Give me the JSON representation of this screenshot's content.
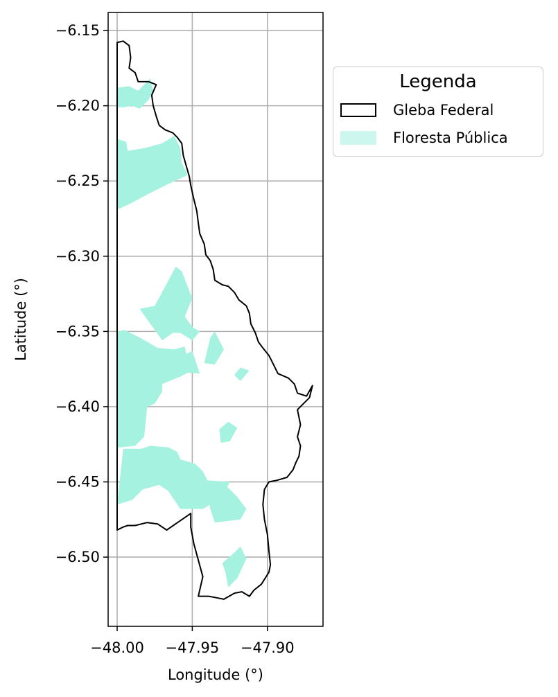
{
  "chart_data": {
    "type": "map",
    "xlabel": "Longitude (°)",
    "ylabel": "Latitude (°)",
    "xlim": [
      -48.006,
      -47.863
    ],
    "ylim": [
      -6.546,
      -6.138
    ],
    "xticks": [
      -48.0,
      -47.95,
      -47.9
    ],
    "xtick_labels": [
      "−48.00",
      "−47.95",
      "−47.90"
    ],
    "yticks": [
      -6.15,
      -6.2,
      -6.25,
      -6.3,
      -6.35,
      -6.4,
      -6.45,
      -6.5
    ],
    "ytick_labels": [
      "−6.15",
      "−6.20",
      "−6.25",
      "−6.30",
      "−6.35",
      "−6.40",
      "−6.45",
      "−6.50"
    ],
    "grid": true,
    "legend": {
      "title": "Legenda",
      "placement": "outside upper right",
      "entries": [
        {
          "label": "Gleba Federal",
          "style": "outline",
          "color": "#000000"
        },
        {
          "label": "Floresta Pública",
          "style": "fill",
          "color": "#a6f2e0"
        }
      ]
    },
    "series": [
      {
        "name": "Gleba Federal",
        "geometry": "polygon-outline",
        "coordinates": [
          [
            -48.0,
            -6.158
          ],
          [
            -47.996,
            -6.157
          ],
          [
            -47.992,
            -6.16
          ],
          [
            -47.991,
            -6.168
          ],
          [
            -47.992,
            -6.175
          ],
          [
            -47.988,
            -6.178
          ],
          [
            -47.986,
            -6.184
          ],
          [
            -47.979,
            -6.184
          ],
          [
            -47.974,
            -6.186
          ],
          [
            -47.977,
            -6.193
          ],
          [
            -47.976,
            -6.2
          ],
          [
            -47.974,
            -6.207
          ],
          [
            -47.972,
            -6.213
          ],
          [
            -47.968,
            -6.216
          ],
          [
            -47.963,
            -6.218
          ],
          [
            -47.96,
            -6.221
          ],
          [
            -47.957,
            -6.225
          ],
          [
            -47.956,
            -6.233
          ],
          [
            -47.954,
            -6.24
          ],
          [
            -47.952,
            -6.247
          ],
          [
            -47.951,
            -6.253
          ],
          [
            -47.949,
            -6.262
          ],
          [
            -47.947,
            -6.27
          ],
          [
            -47.946,
            -6.278
          ],
          [
            -47.945,
            -6.285
          ],
          [
            -47.942,
            -6.292
          ],
          [
            -47.941,
            -6.299
          ],
          [
            -47.938,
            -6.303
          ],
          [
            -47.936,
            -6.309
          ],
          [
            -47.935,
            -6.316
          ],
          [
            -47.93,
            -6.319
          ],
          [
            -47.926,
            -6.32
          ],
          [
            -47.922,
            -6.324
          ],
          [
            -47.919,
            -6.329
          ],
          [
            -47.914,
            -6.333
          ],
          [
            -47.912,
            -6.338
          ],
          [
            -47.911,
            -6.345
          ],
          [
            -47.908,
            -6.351
          ],
          [
            -47.906,
            -6.357
          ],
          [
            -47.903,
            -6.361
          ],
          [
            -47.899,
            -6.366
          ],
          [
            -47.896,
            -6.372
          ],
          [
            -47.893,
            -6.378
          ],
          [
            -47.886,
            -6.381
          ],
          [
            -47.882,
            -6.385
          ],
          [
            -47.88,
            -6.391
          ],
          [
            -47.874,
            -6.393
          ],
          [
            -47.87,
            -6.386
          ],
          [
            -47.872,
            -6.394
          ],
          [
            -47.876,
            -6.398
          ],
          [
            -47.88,
            -6.402
          ],
          [
            -47.878,
            -6.412
          ],
          [
            -47.88,
            -6.42
          ],
          [
            -47.878,
            -6.426
          ],
          [
            -47.879,
            -6.433
          ],
          [
            -47.881,
            -6.437
          ],
          [
            -47.883,
            -6.442
          ],
          [
            -47.887,
            -6.447
          ],
          [
            -47.894,
            -6.449
          ],
          [
            -47.899,
            -6.45
          ],
          [
            -47.902,
            -6.455
          ],
          [
            -47.903,
            -6.465
          ],
          [
            -47.902,
            -6.475
          ],
          [
            -47.9,
            -6.485
          ],
          [
            -47.899,
            -6.496
          ],
          [
            -47.898,
            -6.505
          ],
          [
            -47.899,
            -6.51
          ],
          [
            -47.904,
            -6.518
          ],
          [
            -47.909,
            -6.522
          ],
          [
            -47.912,
            -6.526
          ],
          [
            -47.917,
            -6.523
          ],
          [
            -47.922,
            -6.524
          ],
          [
            -47.929,
            -6.528
          ],
          [
            -47.934,
            -6.527
          ],
          [
            -47.939,
            -6.526
          ],
          [
            -47.946,
            -6.526
          ],
          [
            -47.943,
            -6.513
          ],
          [
            -47.949,
            -6.491
          ],
          [
            -47.951,
            -6.48
          ],
          [
            -47.951,
            -6.471
          ],
          [
            -47.967,
            -6.482
          ],
          [
            -47.973,
            -6.478
          ],
          [
            -47.98,
            -6.477
          ],
          [
            -47.984,
            -6.478
          ],
          [
            -47.988,
            -6.479
          ],
          [
            -47.993,
            -6.479
          ],
          [
            -47.996,
            -6.48
          ],
          [
            -48.0,
            -6.482
          ]
        ]
      },
      {
        "name": "Floresta Pública",
        "geometry": "filled-polygons",
        "polygons": [
          [
            [
              -48.0,
              -6.188
            ],
            [
              -47.992,
              -6.187
            ],
            [
              -47.986,
              -6.19
            ],
            [
              -47.982,
              -6.186
            ],
            [
              -47.978,
              -6.182
            ],
            [
              -47.976,
              -6.19
            ],
            [
              -47.979,
              -6.196
            ],
            [
              -47.985,
              -6.202
            ],
            [
              -47.99,
              -6.2
            ],
            [
              -47.995,
              -6.201
            ],
            [
              -48.0,
              -6.201
            ]
          ],
          [
            [
              -48.0,
              -6.222
            ],
            [
              -47.994,
              -6.224
            ],
            [
              -47.993,
              -6.23
            ],
            [
              -47.981,
              -6.228
            ],
            [
              -47.97,
              -6.225
            ],
            [
              -47.962,
              -6.22
            ],
            [
              -47.958,
              -6.228
            ],
            [
              -47.957,
              -6.238
            ],
            [
              -47.953,
              -6.246
            ],
            [
              -47.966,
              -6.252
            ],
            [
              -47.98,
              -6.259
            ],
            [
              -47.991,
              -6.265
            ],
            [
              -48.0,
              -6.269
            ]
          ],
          [
            [
              -47.985,
              -6.335
            ],
            [
              -47.975,
              -6.333
            ],
            [
              -47.961,
              -6.307
            ],
            [
              -47.957,
              -6.31
            ],
            [
              -47.95,
              -6.328
            ],
            [
              -47.955,
              -6.34
            ],
            [
              -47.95,
              -6.347
            ],
            [
              -47.945,
              -6.35
            ],
            [
              -47.95,
              -6.356
            ],
            [
              -47.958,
              -6.351
            ],
            [
              -47.963,
              -6.351
            ],
            [
              -47.97,
              -6.356
            ]
          ],
          [
            [
              -48.0,
              -6.35
            ],
            [
              -47.995,
              -6.349
            ],
            [
              -47.985,
              -6.354
            ],
            [
              -47.978,
              -6.358
            ],
            [
              -47.973,
              -6.361
            ],
            [
              -47.962,
              -6.362
            ],
            [
              -47.955,
              -6.36
            ],
            [
              -47.952,
              -6.377
            ],
            [
              -47.958,
              -6.38
            ],
            [
              -47.97,
              -6.385
            ],
            [
              -47.97,
              -6.39
            ],
            [
              -47.975,
              -6.398
            ],
            [
              -47.98,
              -6.4
            ],
            [
              -47.982,
              -6.42
            ],
            [
              -47.988,
              -6.426
            ],
            [
              -47.997,
              -6.427
            ],
            [
              -48.0,
              -6.427
            ]
          ],
          [
            [
              -47.996,
              -6.428
            ],
            [
              -47.984,
              -6.428
            ],
            [
              -47.978,
              -6.426
            ],
            [
              -47.966,
              -6.427
            ],
            [
              -47.96,
              -6.43
            ],
            [
              -47.958,
              -6.435
            ],
            [
              -47.948,
              -6.438
            ],
            [
              -47.943,
              -6.443
            ],
            [
              -47.94,
              -6.449
            ],
            [
              -47.925,
              -6.45
            ],
            [
              -47.93,
              -6.46
            ],
            [
              -47.943,
              -6.468
            ],
            [
              -47.958,
              -6.468
            ],
            [
              -47.966,
              -6.456
            ],
            [
              -47.972,
              -6.452
            ],
            [
              -47.983,
              -6.455
            ],
            [
              -47.99,
              -6.462
            ],
            [
              -48.0,
              -6.465
            ]
          ],
          [
            [
              -47.94,
              -6.456
            ],
            [
              -47.928,
              -6.452
            ],
            [
              -47.92,
              -6.46
            ],
            [
              -47.914,
              -6.468
            ],
            [
              -47.918,
              -6.475
            ],
            [
              -47.935,
              -6.477
            ],
            [
              -47.938,
              -6.468
            ]
          ],
          [
            [
              -47.942,
              -6.371
            ],
            [
              -47.938,
              -6.354
            ],
            [
              -47.935,
              -6.35
            ],
            [
              -47.929,
              -6.362
            ],
            [
              -47.935,
              -6.372
            ]
          ],
          [
            [
              -47.96,
              -6.368
            ],
            [
              -47.95,
              -6.363
            ],
            [
              -47.945,
              -6.378
            ],
            [
              -47.957,
              -6.377
            ]
          ],
          [
            [
              -47.922,
              -6.379
            ],
            [
              -47.918,
              -6.374
            ],
            [
              -47.912,
              -6.376
            ],
            [
              -47.918,
              -6.383
            ]
          ],
          [
            [
              -47.932,
              -6.415
            ],
            [
              -47.926,
              -6.41
            ],
            [
              -47.92,
              -6.414
            ],
            [
              -47.925,
              -6.423
            ],
            [
              -47.931,
              -6.424
            ]
          ],
          [
            [
              -47.922,
              -6.497
            ],
            [
              -47.918,
              -6.493
            ],
            [
              -47.914,
              -6.501
            ],
            [
              -47.92,
              -6.514
            ],
            [
              -47.926,
              -6.52
            ],
            [
              -47.928,
              -6.51
            ],
            [
              -47.93,
              -6.504
            ]
          ]
        ]
      }
    ]
  }
}
